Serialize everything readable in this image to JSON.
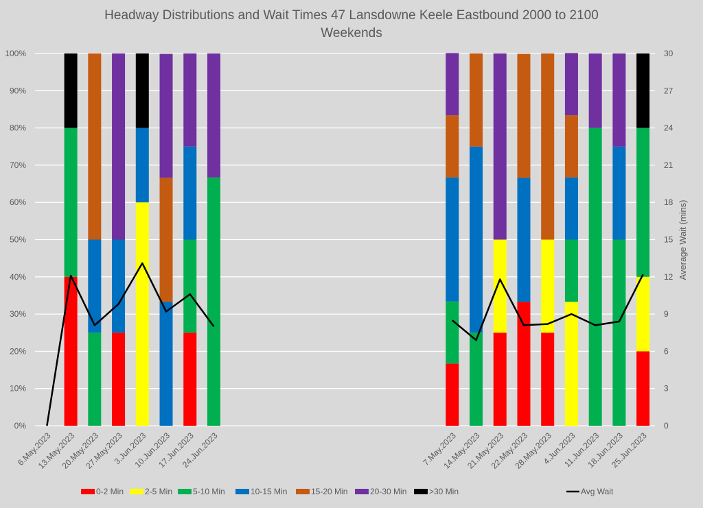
{
  "chart_data": {
    "type": "bar",
    "stacked": true,
    "title": "Headway Distributions and Wait Times 47 Lansdowne  Keele Eastbound 2000 to 2100",
    "subtitle": "Weekends",
    "xlabel": "",
    "ylabel": "",
    "y2label": "Average Wait (mins)",
    "ylim": [
      0,
      100
    ],
    "y2lim": [
      0,
      30
    ],
    "yticks": [
      "0%",
      "10%",
      "20%",
      "30%",
      "40%",
      "50%",
      "60%",
      "70%",
      "80%",
      "90%",
      "100%"
    ],
    "y2ticks": [
      "0",
      "3",
      "6",
      "9",
      "12",
      "15",
      "18",
      "21",
      "24",
      "27",
      "30"
    ],
    "grid": true,
    "legend_position": "bottom",
    "categories": [
      "6.May.2023",
      "13.May.2023",
      "20.May.2023",
      "27.May.2023",
      "3.Jun.2023",
      "10.Jun.2023",
      "17.Jun.2023",
      "24.Jun.2023",
      "",
      "",
      "",
      "",
      "",
      "",
      "",
      "",
      "",
      "7.May.2023",
      "14.May.2023",
      "21.May.2023",
      "22.May.2023",
      "28.May.2023",
      "4.Jun.2023",
      "11.Jun.2023",
      "18.Jun.2023",
      "25.Jun.2023"
    ],
    "series": [
      {
        "name": "0-2 Min",
        "color": "#ff0000",
        "values": [
          0,
          40,
          0,
          25,
          0,
          0,
          25,
          0,
          null,
          null,
          null,
          null,
          null,
          null,
          null,
          null,
          null,
          16.7,
          0,
          25,
          33.3,
          25,
          0,
          0,
          0,
          20
        ]
      },
      {
        "name": "2-5 Min",
        "color": "#ffff00",
        "values": [
          0,
          0,
          0,
          0,
          60,
          0,
          0,
          0,
          null,
          null,
          null,
          null,
          null,
          null,
          null,
          null,
          null,
          0,
          0,
          25,
          0,
          25,
          33.3,
          0,
          0,
          20
        ]
      },
      {
        "name": "5-10 Min",
        "color": "#00b050",
        "values": [
          0,
          40,
          25,
          0,
          0,
          0,
          25,
          66.7,
          null,
          null,
          null,
          null,
          null,
          null,
          null,
          null,
          null,
          16.7,
          25,
          0,
          0,
          0,
          16.7,
          80,
          50,
          40
        ]
      },
      {
        "name": "10-15 Min",
        "color": "#0070c0",
        "values": [
          0,
          0,
          25,
          25,
          20,
          33.3,
          25,
          0,
          null,
          null,
          null,
          null,
          null,
          null,
          null,
          null,
          null,
          33.3,
          50,
          0,
          33.3,
          0,
          16.7,
          0,
          25,
          0
        ]
      },
      {
        "name": "15-20 Min",
        "color": "#c55a11",
        "values": [
          0,
          0,
          50,
          0,
          0,
          33.3,
          0,
          0,
          null,
          null,
          null,
          null,
          null,
          null,
          null,
          null,
          null,
          16.7,
          25,
          0,
          33.3,
          50,
          16.7,
          0,
          0,
          0
        ]
      },
      {
        "name": "20-30 Min",
        "color": "#7030a0",
        "values": [
          0,
          0,
          0,
          50,
          0,
          33.3,
          25,
          33.3,
          null,
          null,
          null,
          null,
          null,
          null,
          null,
          null,
          null,
          16.7,
          0,
          50,
          0,
          0,
          16.7,
          20,
          25,
          0
        ]
      },
      {
        "name": ">30 Min",
        "color": "#000000",
        "values": [
          0,
          20,
          0,
          0,
          20,
          0,
          0,
          0,
          null,
          null,
          null,
          null,
          null,
          null,
          null,
          null,
          null,
          0,
          0,
          0,
          0,
          0,
          0,
          0,
          0,
          20
        ]
      }
    ],
    "line_series": {
      "name": "Avg Wait",
      "color": "#000000",
      "axis": "right",
      "segments": [
        {
          "start": 0,
          "values": [
            0,
            12.1,
            8.1,
            9.8,
            13.1,
            9.2,
            10.6,
            8.0
          ]
        },
        {
          "start": 17,
          "values": [
            8.5,
            6.9,
            11.8,
            8.1,
            8.2,
            9.0,
            8.1,
            8.4,
            12.2
          ]
        }
      ]
    },
    "colors": {
      "background": "#d9d9d9",
      "gridline": "#ffffff",
      "text": "#595959"
    }
  }
}
